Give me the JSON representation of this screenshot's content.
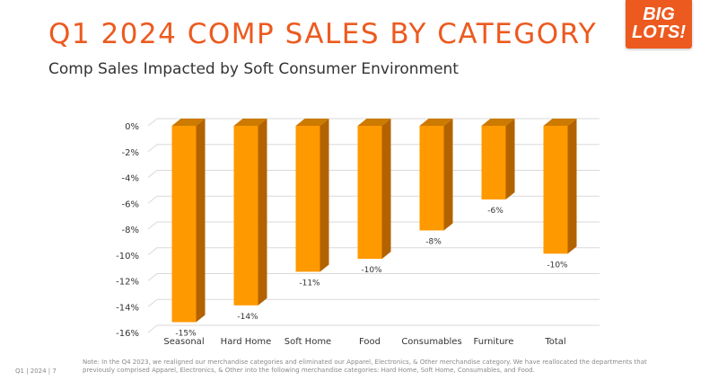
{
  "slide": {
    "title": "Q1 2024 COMP SALES BY CATEGORY",
    "subtitle": "Comp Sales Impacted by Soft Consumer Environment",
    "logo_line1": "BIG",
    "logo_line2": "LOTS!",
    "footnote": "Note: In the Q4 2023, we realigned our merchandise categories and eliminated our Apparel, Electronics, & Other merchandise category. We have reallocated the departments that previously comprised Apparel, Electronics, & Other into the following merchandise categories: Hard Home, Soft Home, Consumables, and Food.",
    "page_footer": "Q1  |  2024  |  7"
  },
  "colors": {
    "accent": "#ec5a1f",
    "bar_front": "#ff9900",
    "bar_side": "#b36200",
    "bar_top": "#cc7a00",
    "gridline": "#d9d9d9",
    "text": "#333333"
  },
  "chart_data": {
    "type": "bar",
    "categories": [
      "Seasonal",
      "Hard Home",
      "Soft Home",
      "Food",
      "Consumables",
      "Furniture",
      "Total"
    ],
    "values": [
      -15.2,
      -13.9,
      -11.3,
      -10.3,
      -8.1,
      -5.7,
      -9.9
    ],
    "data_labels": [
      "-15%",
      "-14%",
      "-11%",
      "-10%",
      "-8%",
      "-6%",
      "-10%"
    ],
    "y_ticks": [
      0,
      -2,
      -4,
      -6,
      -8,
      -10,
      -12,
      -14,
      -16
    ],
    "y_tick_labels": [
      "0%",
      "-2%",
      "-4%",
      "-6%",
      "-8%",
      "-10%",
      "-12%",
      "-14%",
      "-16%"
    ],
    "ylim": [
      -16,
      0
    ],
    "grid": true,
    "legend": "none",
    "style": "3d"
  }
}
